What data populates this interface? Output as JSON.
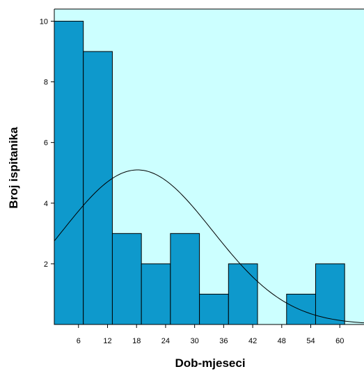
{
  "chart_data": {
    "type": "bar",
    "subtype": "histogram",
    "xlabel": "Dob-mjeseci",
    "ylabel": "Broj ispitanika",
    "bins": [
      {
        "start": 1,
        "end": 7,
        "count": 10
      },
      {
        "start": 7,
        "end": 13,
        "count": 9
      },
      {
        "start": 13,
        "end": 19,
        "count": 3
      },
      {
        "start": 19,
        "end": 25,
        "count": 2
      },
      {
        "start": 25,
        "end": 31,
        "count": 3
      },
      {
        "start": 31,
        "end": 37,
        "count": 1
      },
      {
        "start": 37,
        "end": 43,
        "count": 2
      },
      {
        "start": 43,
        "end": 49,
        "count": 0
      },
      {
        "start": 49,
        "end": 55,
        "count": 1
      },
      {
        "start": 55,
        "end": 61,
        "count": 2
      }
    ],
    "x_ticks": [
      6,
      12,
      18,
      24,
      30,
      36,
      42,
      48,
      54,
      60
    ],
    "y_ticks": [
      2,
      4,
      6,
      8,
      10
    ],
    "xlim": [
      1,
      65
    ],
    "ylim": [
      0,
      10.4
    ],
    "normal_curve": {
      "mean": 18.2,
      "std_dev": 15.5,
      "n": 33,
      "bin_width": 6
    },
    "grid": false,
    "legend": "none",
    "colors": {
      "plot_background": "#ccffff",
      "bar_fill": "#0e99cc",
      "bar_stroke": "#000000",
      "curve": "#000000"
    }
  }
}
